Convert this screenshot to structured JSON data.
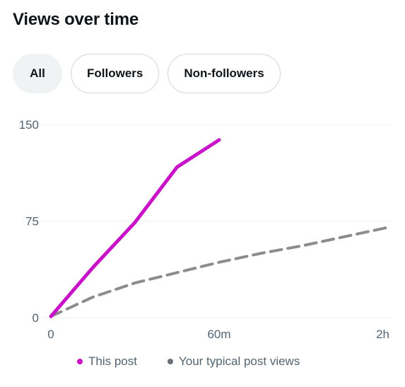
{
  "header": {
    "title": "Views over time"
  },
  "filters": [
    {
      "label": "All",
      "active": true
    },
    {
      "label": "Followers",
      "active": false
    },
    {
      "label": "Non-followers",
      "active": false
    }
  ],
  "colors": {
    "this_post": "#c813c8",
    "typical": "#8c8c8c",
    "typical_legend_dot": "#6b7075",
    "grid": "#eff1f2",
    "axis_text": "#536471"
  },
  "chart_data": {
    "type": "line",
    "x_unit": "minutes",
    "x_ticks": [
      {
        "value": 0,
        "label": "0"
      },
      {
        "value": 60,
        "label": "60m"
      },
      {
        "value": 120,
        "label": "2h"
      }
    ],
    "y_ticks": [
      {
        "value": 0,
        "label": "0"
      },
      {
        "value": 75,
        "label": "75"
      },
      {
        "value": 150,
        "label": "150"
      }
    ],
    "xlim": [
      0,
      120
    ],
    "ylim": [
      0,
      150
    ],
    "grid": true,
    "legend_position": "bottom",
    "series": [
      {
        "name": "This post",
        "style": "solid",
        "x": [
          0,
          15,
          30,
          45,
          60
        ],
        "y": [
          1,
          39,
          74,
          117,
          138
        ]
      },
      {
        "name": "Your typical post views",
        "style": "dashed",
        "x": [
          0,
          15,
          30,
          45,
          60,
          75,
          90,
          105,
          120
        ],
        "y": [
          1,
          16,
          27,
          35,
          43,
          50,
          56,
          63,
          70
        ]
      }
    ]
  }
}
